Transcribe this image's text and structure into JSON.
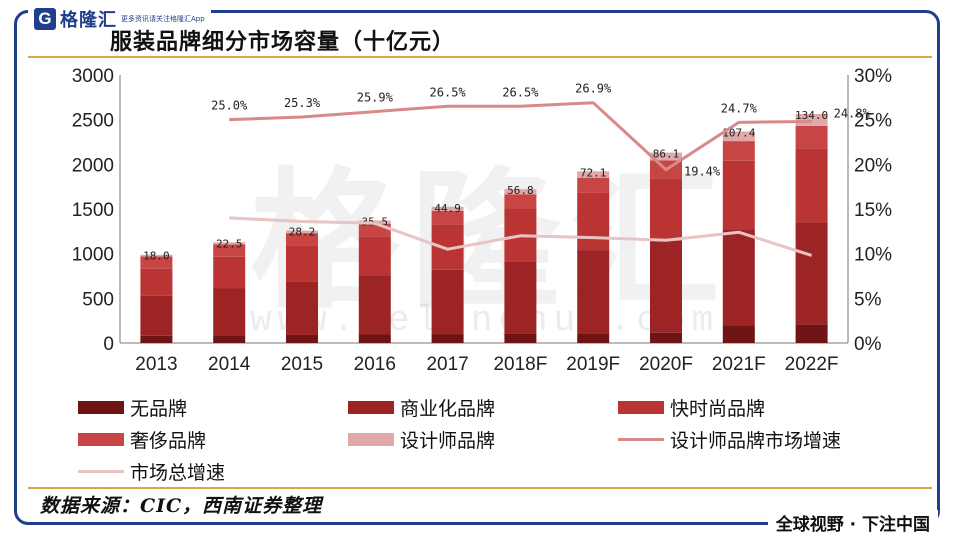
{
  "header": {
    "logo_mark": "G",
    "logo_name": "格隆汇",
    "logo_sub": "更多资讯请关注格隆汇App",
    "title": "服装品牌细分市场容量（十亿元）"
  },
  "watermark": {
    "main": "格隆汇",
    "url": "www.gelonghui.com"
  },
  "footer": {
    "source": "数据来源：CIC，西南证券整理",
    "tagline": "全球视野 · 下注中国"
  },
  "colors": {
    "no_brand": "#6e1414",
    "commercial": "#9c2424",
    "fast_fashion": "#bb3434",
    "luxury": "#c84545",
    "designer": "#e0a8a8",
    "designer_growth": "#d88a8a",
    "total_growth": "#e8c4c4",
    "frame": "#1f3f8c",
    "rule": "#d9a640"
  },
  "chart_data": {
    "type": "bar",
    "stacked": true,
    "categories": [
      "2013",
      "2014",
      "2015",
      "2016",
      "2017",
      "2018F",
      "2019F",
      "2020F",
      "2021F",
      "2022F"
    ],
    "series": [
      {
        "name": "无品牌",
        "values": [
          80,
          85,
          90,
          95,
          100,
          105,
          110,
          115,
          200,
          210
        ]
      },
      {
        "name": "商业化品牌",
        "values": [
          450,
          530,
          600,
          660,
          720,
          810,
          930,
          1030,
          1070,
          1140
        ]
      },
      {
        "name": "快时尚品牌",
        "values": [
          300,
          350,
          400,
          440,
          510,
          590,
          640,
          700,
          770,
          830
        ]
      },
      {
        "name": "奢侈品牌",
        "values": [
          140,
          140,
          140,
          140,
          150,
          160,
          170,
          200,
          220,
          250
        ]
      },
      {
        "name": "设计师品牌",
        "values": [
          18.0,
          22.5,
          28.2,
          35.5,
          44.9,
          56.8,
          72.1,
          86.1,
          107.4,
          134.0
        ]
      }
    ],
    "designer_labels": [
      "18.0",
      "22.5",
      "28.2",
      "35.5",
      "44.9",
      "56.8",
      "72.1",
      "86.1",
      "107.4",
      "134.0"
    ],
    "lines": [
      {
        "name": "设计师品牌市场增速",
        "values": [
          null,
          25.0,
          25.3,
          25.9,
          26.5,
          26.5,
          26.9,
          19.4,
          24.7,
          24.8
        ],
        "labels": [
          "",
          "25.0%",
          "25.3%",
          "25.9%",
          "26.5%",
          "26.5%",
          "26.9%",
          "19.4%",
          "24.7%",
          "24.8%"
        ]
      },
      {
        "name": "市场总增速",
        "values": [
          null,
          14.0,
          13.6,
          13.4,
          10.5,
          12.0,
          11.8,
          11.5,
          12.4,
          9.8
        ]
      }
    ],
    "y_left": {
      "min": 0,
      "max": 3000,
      "ticks": [
        "0",
        "500",
        "1000",
        "1500",
        "2000",
        "2500",
        "3000"
      ]
    },
    "y_right": {
      "min": 0,
      "max": 30,
      "ticks": [
        "0%",
        "5%",
        "10%",
        "15%",
        "20%",
        "25%",
        "30%"
      ]
    },
    "legend": [
      "无品牌",
      "商业化品牌",
      "快时尚品牌",
      "奢侈品牌",
      "设计师品牌",
      "设计师品牌市场增速",
      "市场总增速"
    ]
  }
}
